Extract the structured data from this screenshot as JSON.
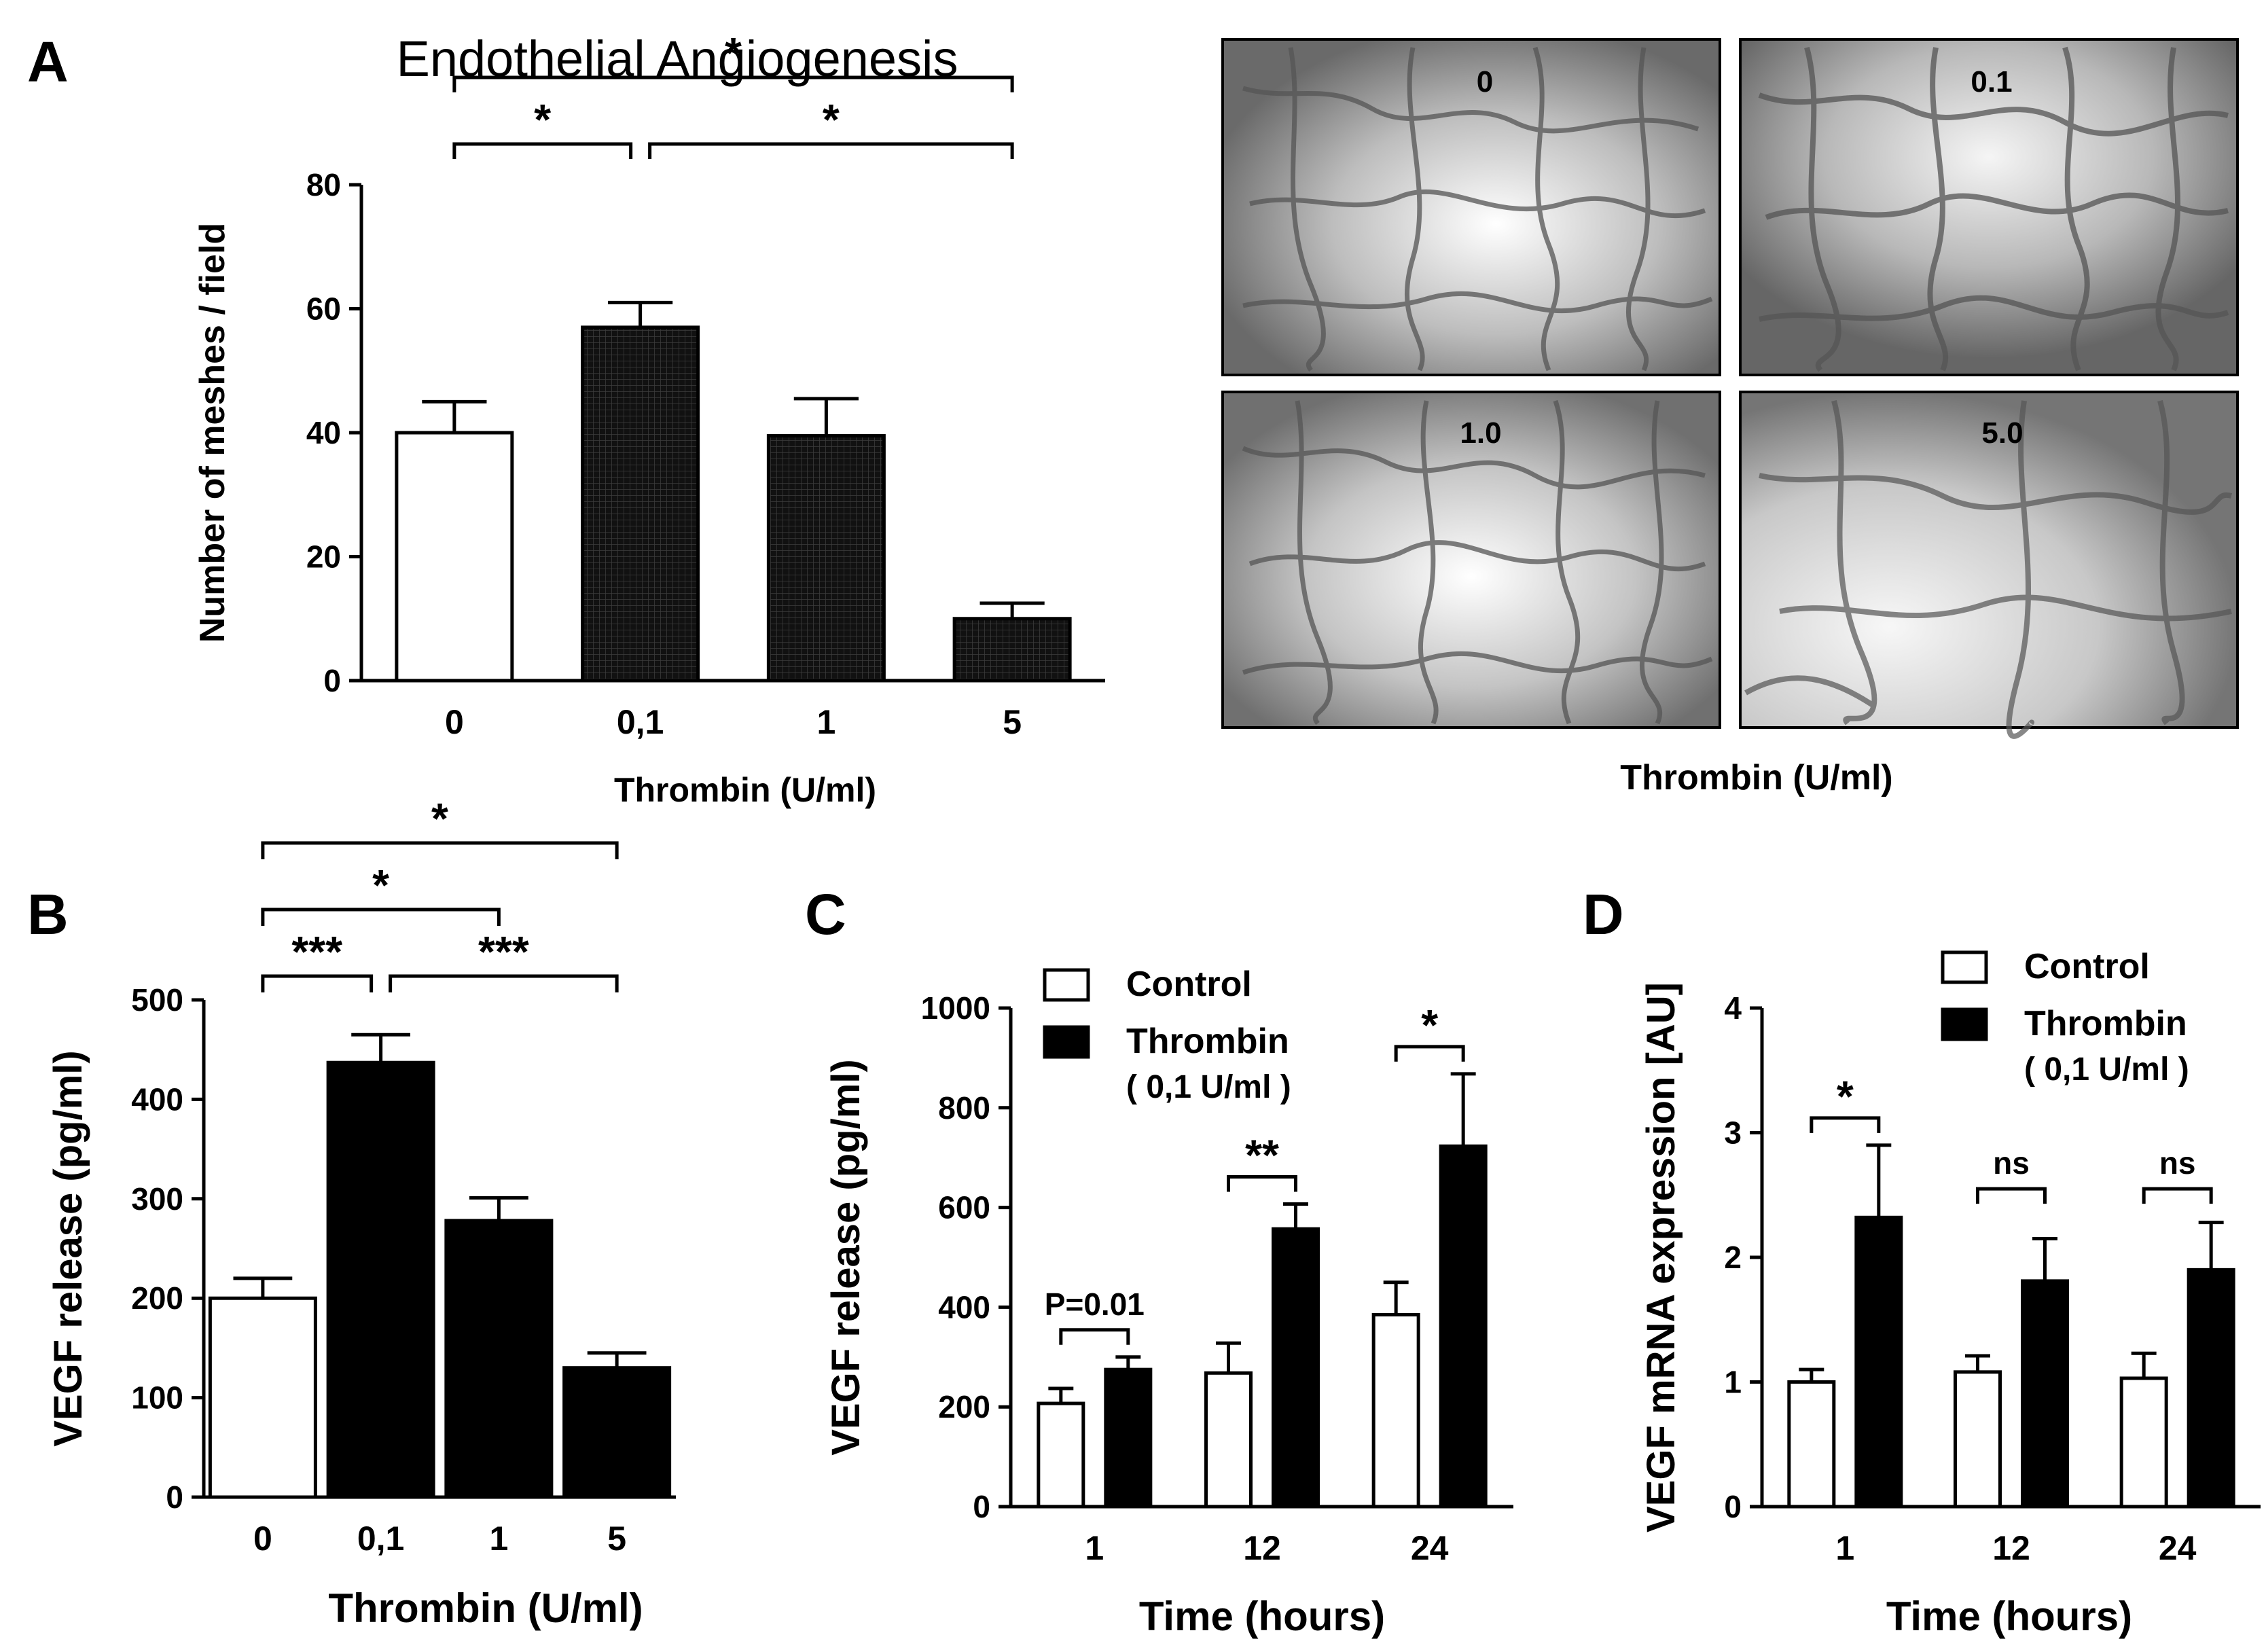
{
  "figure": {
    "panel_labels": [
      "A",
      "B",
      "C",
      "D"
    ]
  },
  "micrographs": {
    "labels": [
      "0",
      "0.1",
      "1.0",
      "5.0"
    ],
    "xlabel": "Thrombin (U/ml)"
  },
  "chart_data": [
    {
      "panel": "A",
      "type": "bar",
      "title": "Endothelial Angiogenesis",
      "xlabel": "Thrombin (U/ml)",
      "ylabel": "Number of meshes / field",
      "categories": [
        "0",
        "0,1",
        "1",
        "5"
      ],
      "values": [
        40,
        57,
        39.5,
        10
      ],
      "errors": [
        5,
        4,
        6,
        2.5
      ],
      "fills": [
        "#ffffff",
        "#111111",
        "#111111",
        "#111111"
      ],
      "patterned": [
        false,
        true,
        true,
        true
      ],
      "ylim": [
        0,
        80
      ],
      "yticks": [
        0,
        20,
        40,
        60,
        80
      ],
      "significance": [
        {
          "from": 0,
          "to": 1,
          "label": "*",
          "level": 1
        },
        {
          "from": 1,
          "to": 3,
          "label": "*",
          "level": 1
        },
        {
          "from": 0,
          "to": 3,
          "label": "*",
          "level": 2
        }
      ]
    },
    {
      "panel": "B",
      "type": "bar",
      "xlabel": "Thrombin (U/ml)",
      "ylabel": "VEGF release (pg/ml)",
      "categories": [
        "0",
        "0,1",
        "1",
        "5"
      ],
      "values": [
        200,
        437,
        278,
        130
      ],
      "errors": [
        20,
        28,
        23,
        15
      ],
      "fills": [
        "#ffffff",
        "#000000",
        "#000000",
        "#000000"
      ],
      "ylim": [
        0,
        500
      ],
      "yticks": [
        0,
        100,
        200,
        300,
        400,
        500
      ],
      "significance": [
        {
          "from": 0,
          "to": 1,
          "label": "***",
          "level": 1
        },
        {
          "from": 1,
          "to": 3,
          "label": "***",
          "level": 1
        },
        {
          "from": 0,
          "to": 2,
          "label": "*",
          "level": 2
        },
        {
          "from": 0,
          "to": 3,
          "label": "*",
          "level": 3
        }
      ]
    },
    {
      "panel": "C",
      "type": "bar",
      "xlabel": "Time (hours)",
      "ylabel": "VEGF release (pg/ml)",
      "categories": [
        "1",
        "12",
        "24"
      ],
      "series": [
        {
          "name": "Control",
          "values": [
            207,
            268,
            385
          ],
          "errors": [
            30,
            60,
            65
          ],
          "fill": "#ffffff"
        },
        {
          "name": "Thrombin",
          "values": [
            275,
            557,
            723
          ],
          "errors": [
            25,
            50,
            145
          ],
          "fill": "#000000"
        }
      ],
      "legend": {
        "entries": [
          "Control",
          "Thrombin"
        ],
        "note": "( 0,1 U/ml )",
        "position": "top-left"
      },
      "ylim": [
        0,
        1000
      ],
      "yticks": [
        0,
        200,
        400,
        600,
        800,
        1000
      ],
      "significance": [
        {
          "group": 0,
          "label": "P=0.01"
        },
        {
          "group": 1,
          "label": "**"
        },
        {
          "group": 2,
          "label": "*"
        }
      ]
    },
    {
      "panel": "D",
      "type": "bar",
      "xlabel": "Time (hours)",
      "ylabel": "VEGF mRNA expression [AU]",
      "categories": [
        "1",
        "12",
        "24"
      ],
      "series": [
        {
          "name": "Control",
          "values": [
            1.0,
            1.08,
            1.03
          ],
          "errors": [
            0.1,
            0.13,
            0.2
          ],
          "fill": "#ffffff"
        },
        {
          "name": "Thrombin",
          "values": [
            2.32,
            1.81,
            1.9
          ],
          "errors": [
            0.58,
            0.34,
            0.38
          ],
          "fill": "#000000"
        }
      ],
      "legend": {
        "entries": [
          "Control",
          "Thrombin"
        ],
        "note": "( 0,1 U/ml )",
        "position": "top-right"
      },
      "ylim": [
        0,
        4
      ],
      "yticks": [
        0,
        1,
        2,
        3,
        4
      ],
      "significance": [
        {
          "group": 0,
          "label": "*"
        },
        {
          "group": 1,
          "label": "ns"
        },
        {
          "group": 2,
          "label": "ns"
        }
      ]
    }
  ]
}
